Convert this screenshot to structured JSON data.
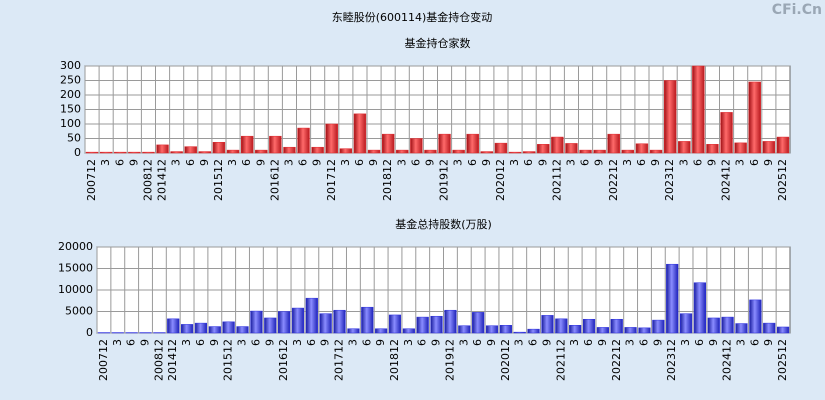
{
  "title": "东睦股份(600114)基金持仓变动",
  "watermark": "CFi.Cn",
  "chart_data": [
    {
      "type": "bar",
      "title": "基金持仓家数",
      "color": "#e0262b",
      "categories": [
        "200712",
        "3",
        "6",
        "9",
        "200812",
        "201412",
        "3",
        "6",
        "9",
        "201512",
        "3",
        "6",
        "9",
        "201612",
        "3",
        "6",
        "9",
        "201712",
        "3",
        "6",
        "9",
        "201812",
        "3",
        "6",
        "9",
        "201912",
        "3",
        "6",
        "9",
        "202012",
        "3",
        "6",
        "9",
        "202112",
        "3",
        "6",
        "9",
        "202212",
        "3",
        "6",
        "9",
        "202312",
        "3",
        "6",
        "9",
        "202412",
        "3",
        "6",
        "9",
        "202512"
      ],
      "values": [
        3,
        3,
        3,
        3,
        3,
        28,
        5,
        22,
        5,
        37,
        10,
        58,
        10,
        58,
        20,
        86,
        20,
        100,
        15,
        135,
        10,
        65,
        10,
        50,
        10,
        65,
        10,
        65,
        5,
        34,
        3,
        5,
        30,
        55,
        33,
        10,
        10,
        65,
        10,
        32,
        10,
        250,
        40,
        300,
        30,
        140,
        35,
        245,
        40,
        55
      ],
      "ylim": [
        0,
        300
      ],
      "yticks": [
        0,
        50,
        100,
        150,
        200,
        250,
        300
      ],
      "grid": true
    },
    {
      "type": "bar",
      "title": "基金总持股数(万股)",
      "color": "#2a2ee0",
      "categories": [
        "200712",
        "3",
        "6",
        "9",
        "200812",
        "201412",
        "3",
        "6",
        "9",
        "201512",
        "3",
        "6",
        "9",
        "201612",
        "3",
        "6",
        "9",
        "201712",
        "3",
        "6",
        "9",
        "201812",
        "3",
        "6",
        "9",
        "201912",
        "3",
        "6",
        "9",
        "202012",
        "3",
        "6",
        "9",
        "202112",
        "3",
        "6",
        "9",
        "202212",
        "3",
        "6",
        "9",
        "202312",
        "3",
        "6",
        "9",
        "202412",
        "3",
        "6",
        "9",
        "202512"
      ],
      "values": [
        100,
        100,
        100,
        100,
        100,
        3300,
        2000,
        2300,
        1500,
        2600,
        1500,
        5100,
        3500,
        5000,
        5800,
        8100,
        4500,
        5300,
        1000,
        6000,
        1000,
        4200,
        1000,
        3700,
        3900,
        5300,
        1700,
        4800,
        1700,
        1800,
        200,
        900,
        4100,
        3300,
        1800,
        3200,
        1300,
        3200,
        1300,
        1200,
        3000,
        16000,
        4500,
        11700,
        3500,
        3700,
        2200,
        7700,
        2300,
        1400
      ],
      "ylim": [
        0,
        20000
      ],
      "yticks": [
        0,
        5000,
        10000,
        15000,
        20000
      ],
      "grid": true
    }
  ]
}
